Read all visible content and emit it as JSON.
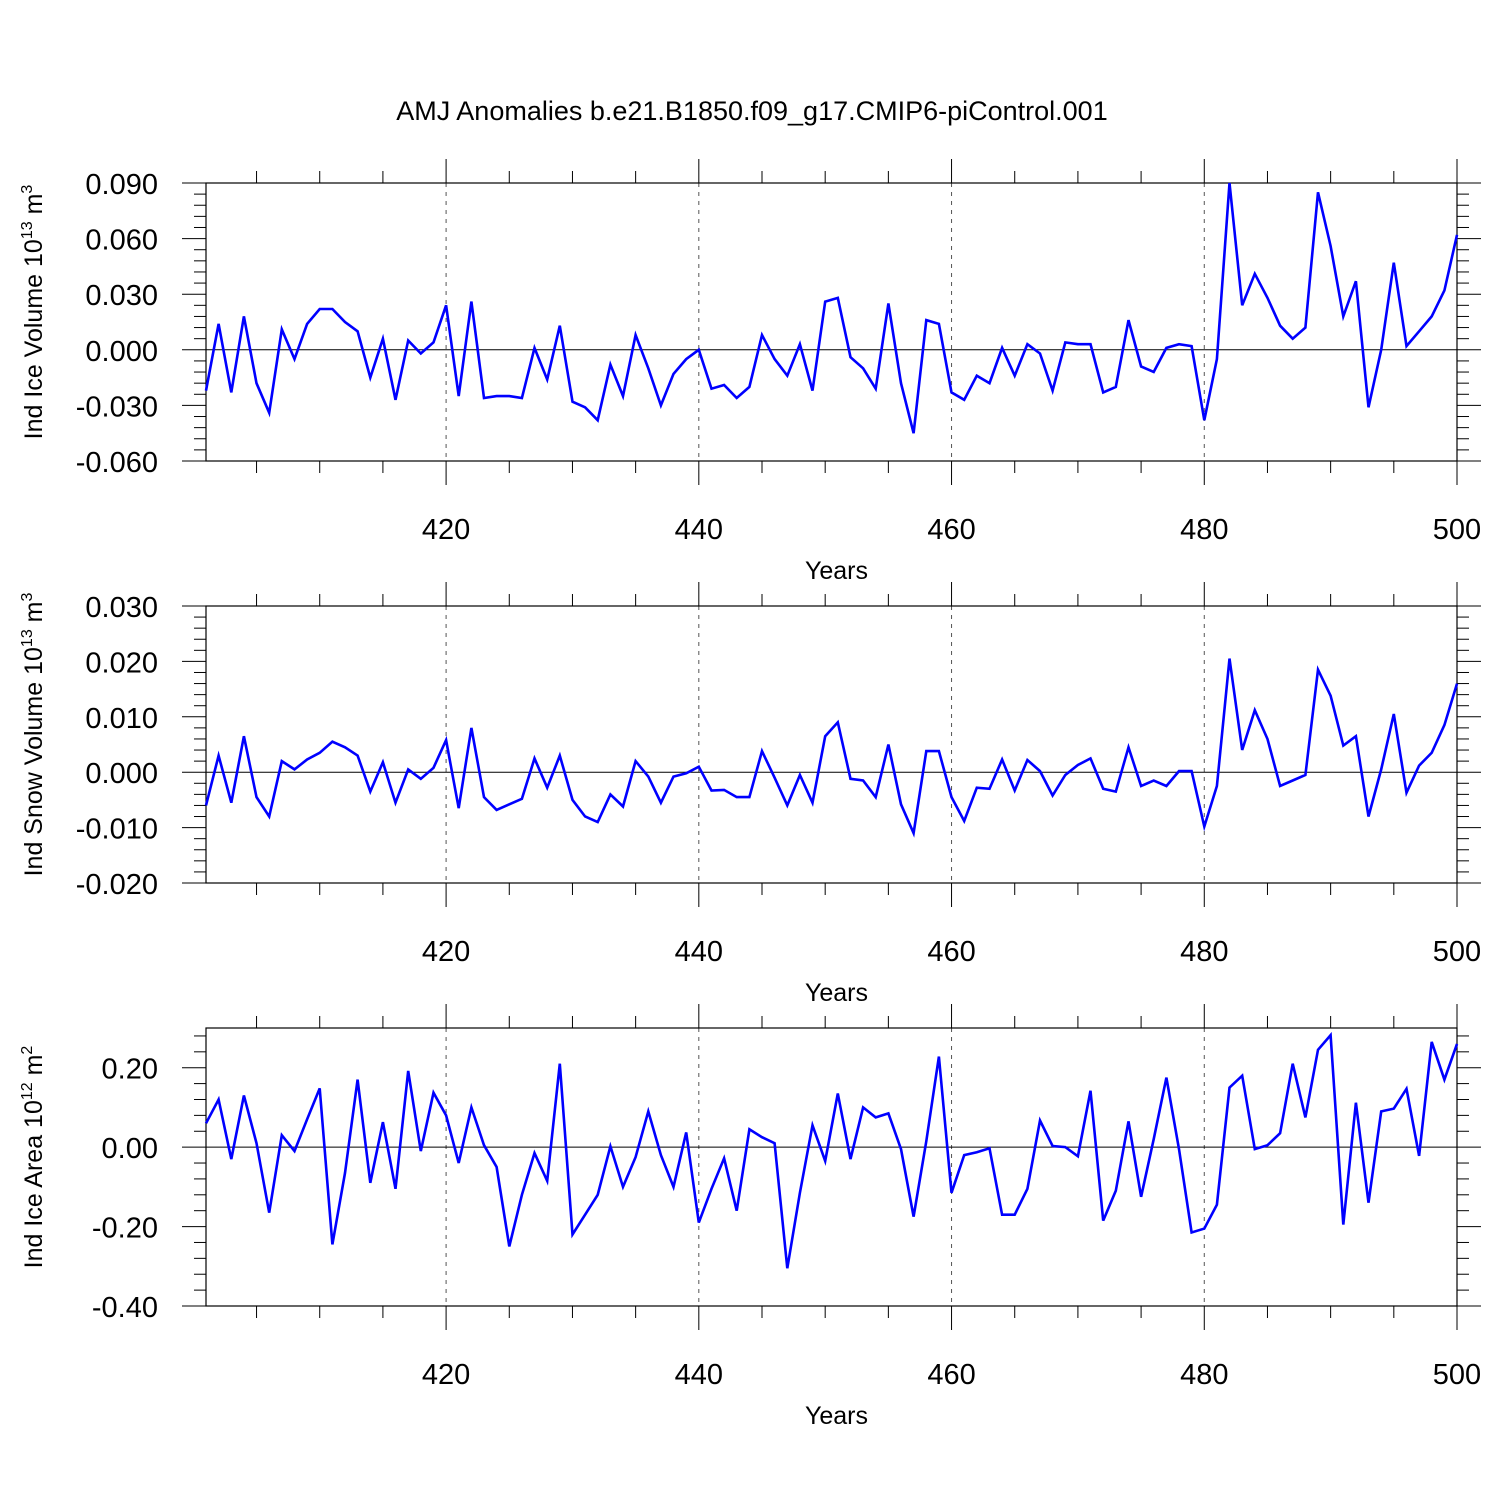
{
  "title": "AMJ Anomalies b.e21.B1850.f09_g17.CMIP6-piControl.001",
  "line_color": "#0000ff",
  "chart_data": [
    {
      "type": "line",
      "ylabel": "Ind Ice Volume 10",
      "ylabel_sup": "13",
      "ylabel_unit": "m",
      "ylabel_unit_sup": "3",
      "xlabel": "Years",
      "xlim": [
        401,
        500
      ],
      "ylim": [
        -0.06,
        0.09
      ],
      "yticks": [
        "0.090",
        "0.060",
        "0.030",
        "0.000",
        "-0.030",
        "-0.060"
      ],
      "ytick_values": [
        0.09,
        0.06,
        0.03,
        0.0,
        -0.03,
        -0.06
      ],
      "xticks": [
        "420",
        "440",
        "460",
        "480",
        "500"
      ],
      "xtick_values": [
        420,
        440,
        460,
        480,
        500
      ],
      "series": [
        {
          "x_start": 401,
          "values": [
            -0.022,
            0.014,
            -0.023,
            0.018,
            -0.018,
            -0.034,
            0.011,
            -0.005,
            0.014,
            0.022,
            0.022,
            0.015,
            0.01,
            -0.015,
            0.006,
            -0.027,
            0.005,
            -0.002,
            0.004,
            0.024,
            -0.025,
            0.026,
            -0.026,
            -0.025,
            -0.025,
            -0.026,
            0.001,
            -0.016,
            0.013,
            -0.028,
            -0.031,
            -0.038,
            -0.008,
            -0.025,
            0.008,
            -0.01,
            -0.03,
            -0.013,
            -0.005,
            0.0,
            -0.021,
            -0.019,
            -0.026,
            -0.02,
            0.008,
            -0.005,
            -0.014,
            0.003,
            -0.022,
            0.026,
            0.028,
            -0.004,
            -0.01,
            -0.021,
            0.025,
            -0.018,
            -0.045,
            0.016,
            0.014,
            -0.023,
            -0.027,
            -0.014,
            -0.018,
            0.001,
            -0.014,
            0.003,
            -0.002,
            -0.022,
            0.004,
            0.003,
            0.003,
            -0.023,
            -0.02,
            0.016,
            -0.009,
            -0.012,
            0.001,
            0.003,
            0.002,
            -0.038,
            -0.005,
            0.09,
            0.024,
            0.041,
            0.028,
            0.013,
            0.006,
            0.012,
            0.085,
            0.056,
            0.018,
            0.037,
            -0.031,
            0.0,
            0.047,
            0.002,
            0.01,
            0.018,
            0.032,
            0.062
          ]
        }
      ]
    },
    {
      "type": "line",
      "ylabel": "Ind Snow Volume 10",
      "ylabel_sup": "13",
      "ylabel_unit": "m",
      "ylabel_unit_sup": "3",
      "xlabel": "Years",
      "xlim": [
        401,
        500
      ],
      "ylim": [
        -0.02,
        0.03
      ],
      "yticks": [
        "0.030",
        "0.020",
        "0.010",
        "0.000",
        "-0.010",
        "-0.020"
      ],
      "ytick_values": [
        0.03,
        0.02,
        0.01,
        0.0,
        -0.01,
        -0.02
      ],
      "xticks": [
        "420",
        "440",
        "460",
        "480",
        "500"
      ],
      "xtick_values": [
        420,
        440,
        460,
        480,
        500
      ],
      "series": [
        {
          "x_start": 401,
          "values": [
            -0.006,
            0.003,
            -0.0055,
            0.0065,
            -0.0045,
            -0.008,
            0.002,
            0.0005,
            0.0023,
            0.0035,
            0.0055,
            0.0045,
            0.003,
            -0.0035,
            0.0018,
            -0.0055,
            0.0005,
            -0.0012,
            0.0008,
            0.0058,
            -0.0065,
            0.008,
            -0.0045,
            -0.0068,
            -0.0058,
            -0.0048,
            0.0025,
            -0.0028,
            0.003,
            -0.005,
            -0.008,
            -0.009,
            -0.004,
            -0.0062,
            0.002,
            -0.0008,
            -0.0055,
            -0.0008,
            -0.0002,
            0.001,
            -0.0033,
            -0.0032,
            -0.0045,
            -0.0045,
            0.0038,
            -0.001,
            -0.006,
            -0.0005,
            -0.0055,
            0.0065,
            0.009,
            -0.0012,
            -0.0015,
            -0.0045,
            0.005,
            -0.0058,
            -0.011,
            0.0038,
            0.0038,
            -0.0045,
            -0.0088,
            -0.0028,
            -0.003,
            0.0023,
            -0.0033,
            0.0022,
            0.0002,
            -0.0042,
            -0.0005,
            0.0013,
            0.0025,
            -0.003,
            -0.0035,
            0.0045,
            -0.0025,
            -0.0015,
            -0.0025,
            0.0002,
            0.0002,
            -0.0098,
            -0.0025,
            0.0205,
            0.004,
            0.0112,
            0.006,
            -0.0025,
            -0.0015,
            -0.0005,
            0.0185,
            0.0138,
            0.0048,
            0.0065,
            -0.008,
            0.0005,
            0.0105,
            -0.0037,
            0.0012,
            0.0035,
            0.0085,
            0.016
          ]
        }
      ]
    },
    {
      "type": "line",
      "ylabel": "Ind Ice Area 10",
      "ylabel_sup": "12",
      "ylabel_unit": "m",
      "ylabel_unit_sup": "2",
      "xlabel": "Years",
      "xlim": [
        401,
        500
      ],
      "ylim": [
        -0.4,
        0.3
      ],
      "yticks": [
        "0.20",
        "0.00",
        "-0.20",
        "-0.40"
      ],
      "ytick_values": [
        0.2,
        0.0,
        -0.2,
        -0.4
      ],
      "xticks": [
        "420",
        "440",
        "460",
        "480",
        "500"
      ],
      "xtick_values": [
        420,
        440,
        460,
        480,
        500
      ],
      "series": [
        {
          "x_start": 401,
          "values": [
            0.06,
            0.12,
            -0.03,
            0.13,
            0.01,
            -0.165,
            0.03,
            -0.01,
            0.07,
            0.148,
            -0.245,
            -0.065,
            0.17,
            -0.09,
            0.063,
            -0.105,
            0.192,
            -0.01,
            0.137,
            0.08,
            -0.04,
            0.1,
            0.005,
            -0.05,
            -0.25,
            -0.12,
            -0.015,
            -0.085,
            0.21,
            -0.22,
            -0.17,
            -0.12,
            0.002,
            -0.1,
            -0.025,
            0.09,
            -0.02,
            -0.1,
            0.037,
            -0.19,
            -0.105,
            -0.028,
            -0.16,
            0.045,
            0.025,
            0.01,
            -0.305,
            -0.115,
            0.055,
            -0.035,
            0.135,
            -0.03,
            0.1,
            0.075,
            0.085,
            -0.005,
            -0.175,
            0.015,
            0.228,
            -0.115,
            -0.02,
            -0.013,
            -0.003,
            -0.17,
            -0.17,
            -0.105,
            0.067,
            0.003,
            0.0,
            -0.023,
            0.142,
            -0.185,
            -0.11,
            0.065,
            -0.125,
            0.02,
            0.175,
            -0.005,
            -0.215,
            -0.205,
            -0.145,
            0.15,
            0.18,
            -0.005,
            0.005,
            0.035,
            0.21,
            0.075,
            0.245,
            0.282,
            -0.195,
            0.112,
            -0.14,
            0.09,
            0.097,
            0.147,
            -0.022,
            0.265,
            0.17,
            0.26
          ]
        }
      ]
    }
  ]
}
